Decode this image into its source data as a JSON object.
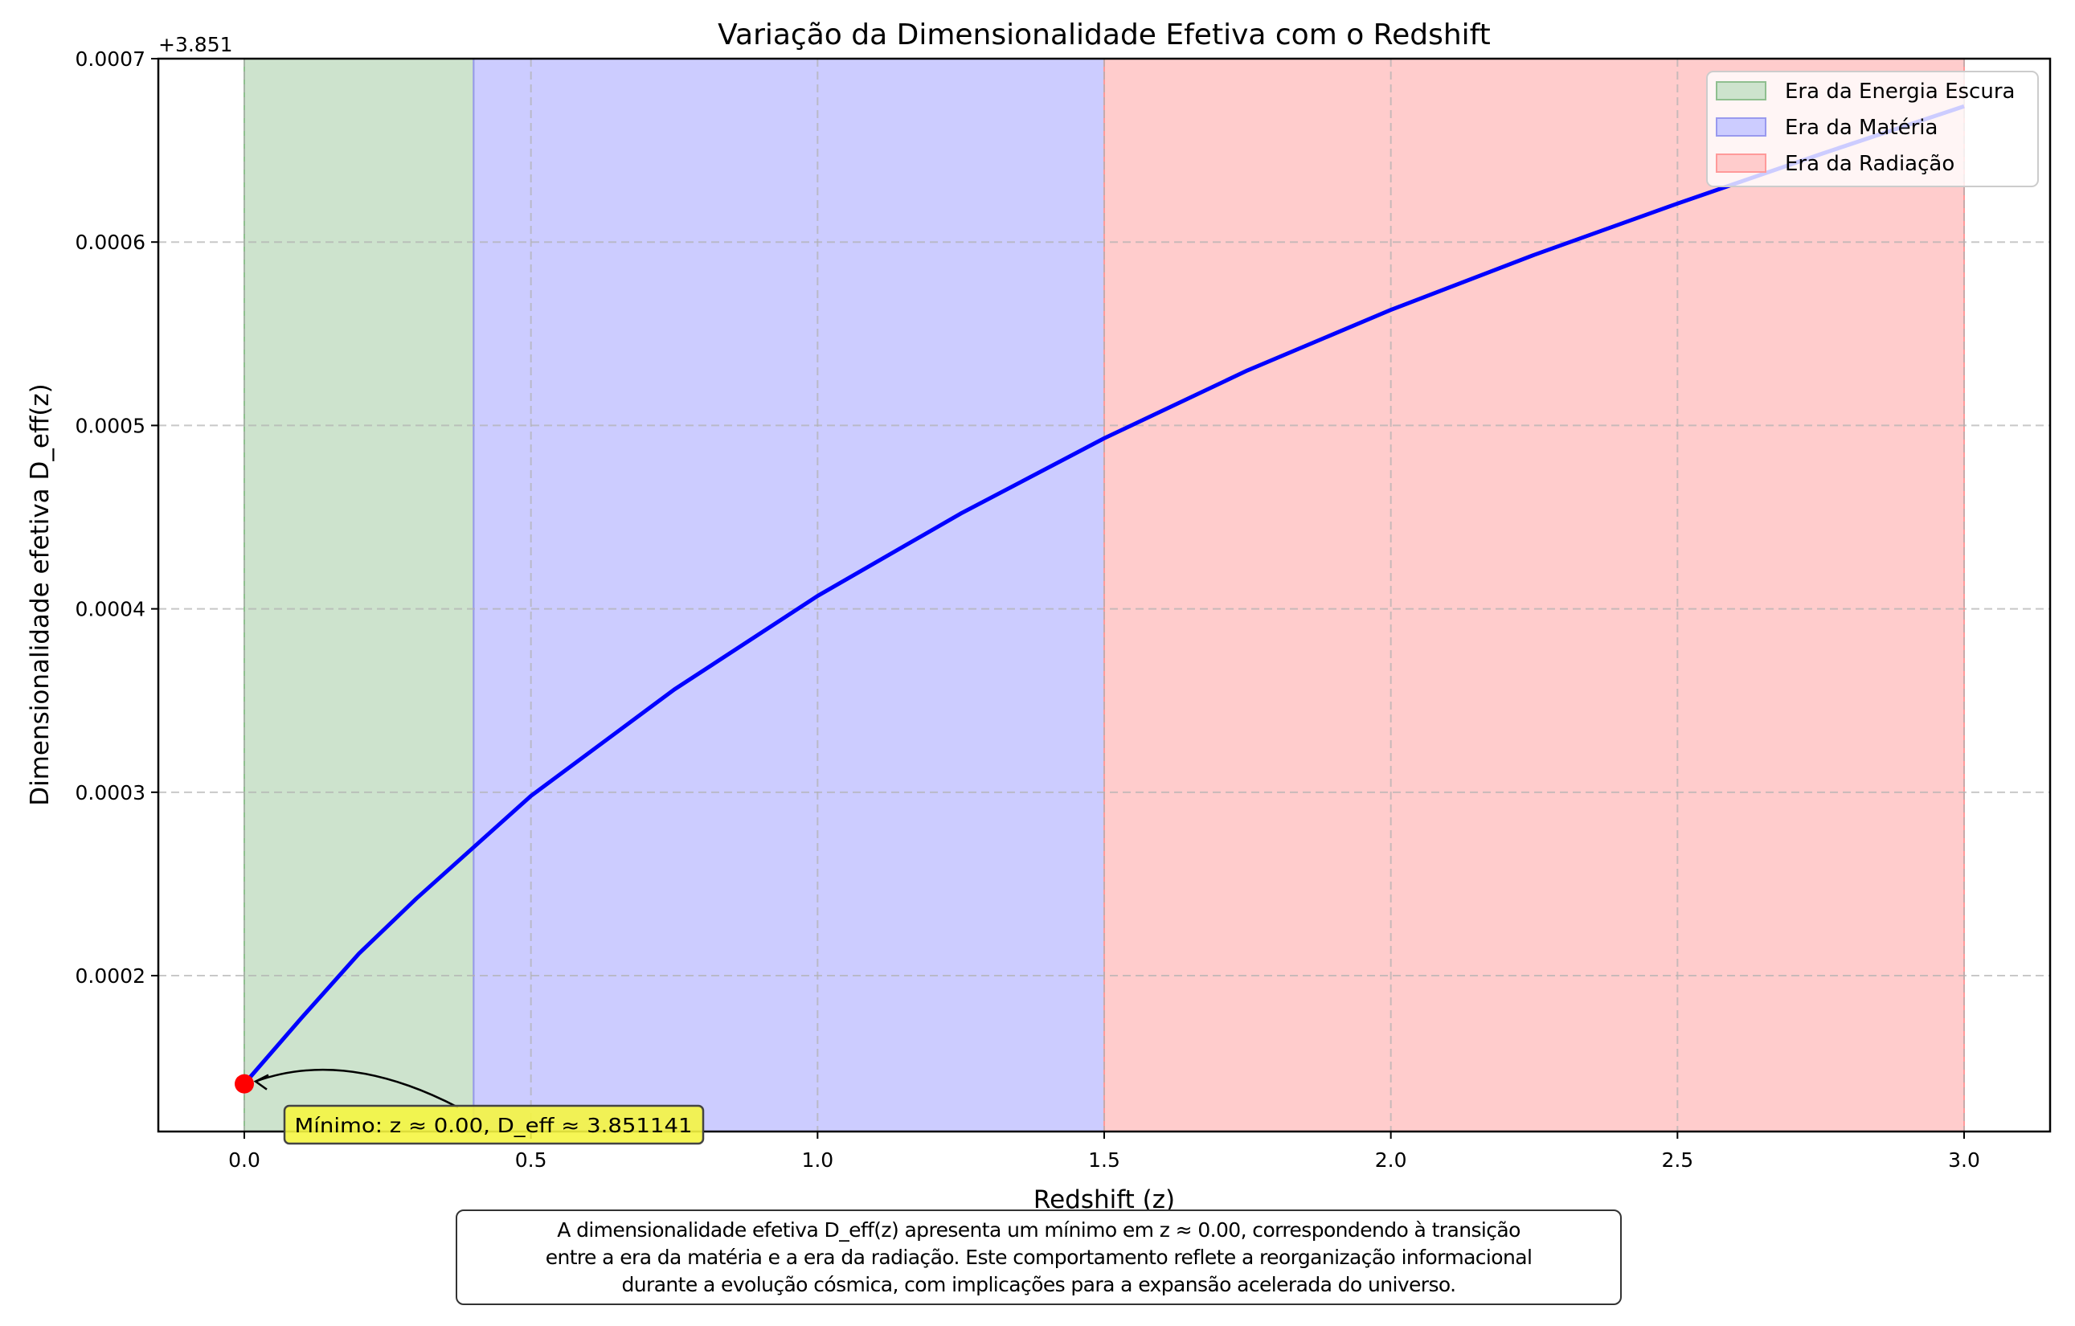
{
  "chart_data": {
    "type": "line",
    "title": "Variação da Dimensionalidade Efetiva com o Redshift",
    "xlabel": "Redshift (z)",
    "ylabel": "Dimensionalidade efetiva D_eff(z)",
    "y_offset_label": "+3.851",
    "y_offset": 3.851,
    "xlim": [
      -0.15,
      3.15
    ],
    "ylim": [
      0.000115,
      0.0007
    ],
    "x_ticks": [
      0.0,
      0.5,
      1.0,
      1.5,
      2.0,
      2.5,
      3.0
    ],
    "x_tick_labels": [
      "0.0",
      "0.5",
      "1.0",
      "1.5",
      "2.0",
      "2.5",
      "3.0"
    ],
    "y_ticks": [
      0.0002,
      0.0003,
      0.0004,
      0.0005,
      0.0006,
      0.0007
    ],
    "y_tick_labels": [
      "0.0002",
      "0.0003",
      "0.0004",
      "0.0005",
      "0.0006",
      "0.0007"
    ],
    "grid": true,
    "series": [
      {
        "name": "D_eff(z)",
        "color": "#0000ff",
        "x": [
          0.0,
          0.1,
          0.2,
          0.3,
          0.4,
          0.5,
          0.75,
          1.0,
          1.25,
          1.5,
          1.75,
          2.0,
          2.25,
          2.5,
          2.75,
          3.0
        ],
        "y_offset_values": [
          0.000141,
          0.000177,
          0.000212,
          0.000242,
          0.00027,
          0.000298,
          0.000356,
          0.000407,
          0.000452,
          0.000493,
          0.00053,
          0.000563,
          0.000593,
          0.000621,
          0.000648,
          0.000674
        ]
      }
    ],
    "regions": [
      {
        "label": "Era da Energia Escura",
        "x_start": 0.0,
        "x_end": 0.4,
        "color": "#cde3cd",
        "edge": "#8fbf8f"
      },
      {
        "label": "Era da Matéria",
        "x_start": 0.4,
        "x_end": 1.5,
        "color": "#ccccff",
        "edge": "#9999ee"
      },
      {
        "label": "Era da Radiação",
        "x_start": 1.5,
        "x_end": 3.0,
        "color": "#ffcccc",
        "edge": "#ff9a9a"
      }
    ],
    "legend_position": "upper right",
    "minimum_point": {
      "z": 0.0,
      "value": 3.851141,
      "offset_value": 0.000141,
      "color": "#ff0000"
    },
    "annotation": {
      "text": "Mínimo: z ≈ 0.00, D_eff ≈ 3.851141",
      "background": "#f5f542"
    }
  },
  "caption": {
    "lines": [
      "A dimensionalidade efetiva D_eff(z) apresenta um mínimo em z ≈ 0.00, correspondendo à transição",
      "entre a era da matéria e a era da radiação. Este comportamento reflete a reorganização informacional",
      "durante a evolução cósmica, com implicações para a expansão acelerada do universo."
    ]
  }
}
